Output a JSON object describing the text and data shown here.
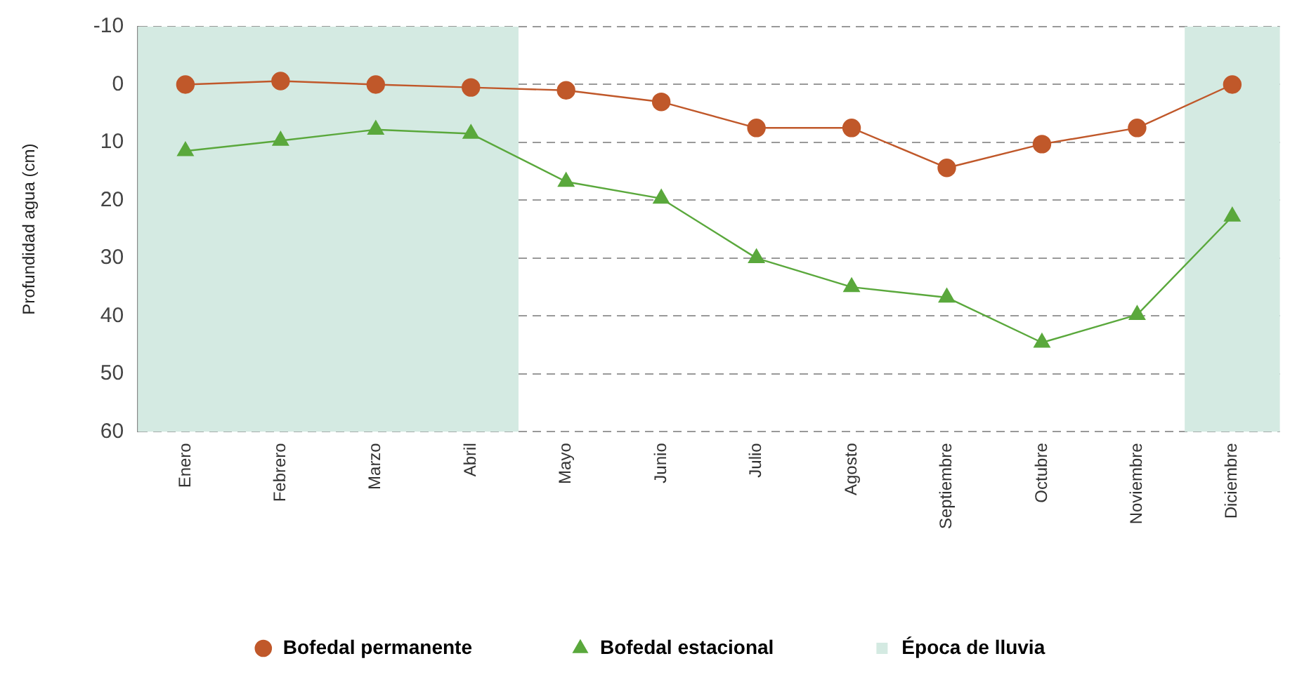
{
  "chart_data": {
    "type": "line",
    "ylabel": "Profundidad agua (cm)",
    "categories": [
      "Enero",
      "Febrero",
      "Marzo",
      "Abril",
      "Mayo",
      "Junio",
      "Julio",
      "Agosto",
      "Septiembre",
      "Octubre",
      "Noviembre",
      "Diciembre"
    ],
    "series": [
      {
        "name": "Bofedal permanente",
        "color": "#c0582a",
        "marker": "circle",
        "values": [
          0,
          -0.6,
          0,
          0.5,
          1,
          3,
          7.5,
          7.5,
          14.4,
          10.3,
          7.5,
          0
        ]
      },
      {
        "name": "Bofedal estacional",
        "color": "#5aa83c",
        "marker": "triangle",
        "values": [
          11.5,
          9.7,
          7.8,
          8.5,
          16.8,
          19.7,
          30,
          35,
          36.8,
          44.6,
          39.8,
          22.8
        ]
      }
    ],
    "ylim": [
      60,
      -10
    ],
    "yticks": [
      -10,
      0,
      10,
      20,
      30,
      40,
      50,
      60
    ],
    "bands": [
      {
        "axis": "x",
        "from": "Enero",
        "to": "Abril",
        "label": "Época de lluvia",
        "color": "#d4eae2"
      },
      {
        "axis": "x",
        "from": "Diciembre",
        "to": "Diciembre",
        "color": "#d4eae2"
      }
    ],
    "grid": "y",
    "legend": "bottom",
    "line_style": "solid"
  }
}
